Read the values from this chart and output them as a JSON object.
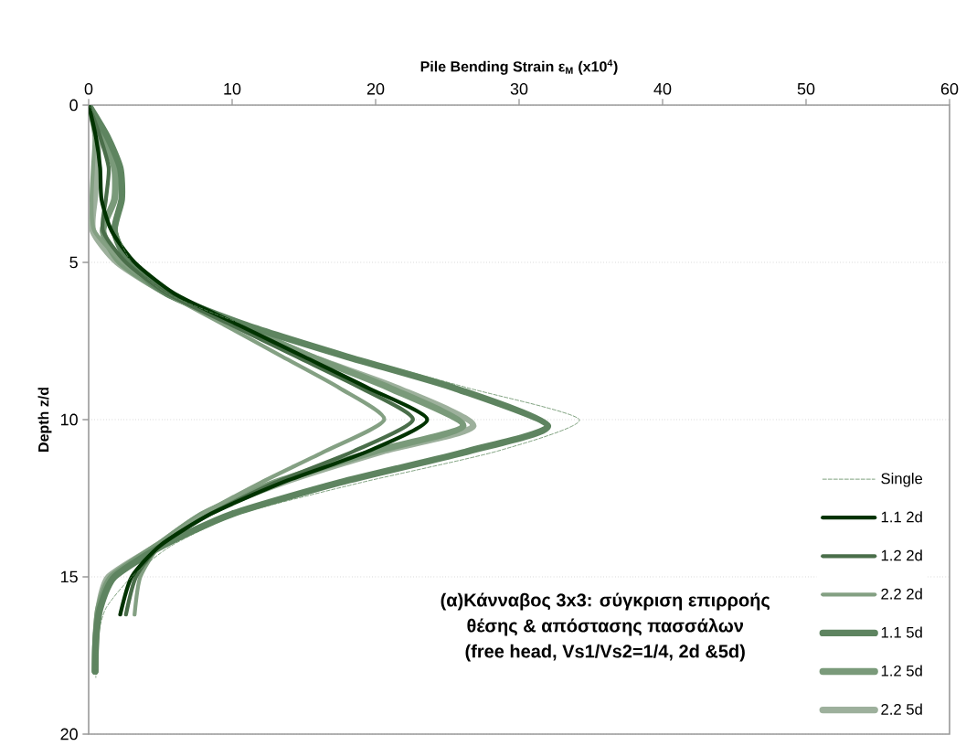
{
  "chart_data": {
    "type": "line",
    "xlabel": "Pile Bending Strain ε$_{M}$  (x10$^{4}$)",
    "ylabel": "Depth z/d",
    "xlim": [
      0,
      60
    ],
    "xticks": [
      0,
      10,
      20,
      30,
      40,
      50,
      60
    ],
    "ylim": [
      20,
      0
    ],
    "yticks": [
      0,
      5,
      10,
      15,
      20
    ],
    "grid": "y",
    "legend": "bottom right",
    "marker": "none",
    "annotations": [
      "(α)Κάνναβος 3x3: σύγκριση επιρροής",
      "θέσης & απόστασης πασσάλων",
      "(free head, Vs1/Vs2=1/4, 2d &5d)"
    ],
    "series": [
      {
        "name": "Single",
        "color": "#5f8a5f",
        "line_style": "dashed",
        "x": [
          0,
          1.4,
          2.3,
          2.4,
          2.0,
          3.0,
          5.5,
          11,
          18.5,
          26.5,
          34.2,
          28.5,
          19,
          10.5,
          5.8,
          3.0,
          1.2,
          0.6,
          0.5
        ],
        "values": [
          0,
          1,
          2,
          3,
          4,
          5,
          6,
          7,
          8,
          9,
          10,
          11,
          12,
          13,
          14,
          15,
          16,
          17,
          18.2
        ]
      },
      {
        "name": "1.1 2d",
        "color": "#003300",
        "line_style": "solid",
        "x": [
          0,
          0.5,
          0.8,
          0.9,
          1.6,
          3.2,
          6,
          10.5,
          15,
          19.5,
          23.6,
          19.5,
          13.5,
          8.5,
          5,
          3,
          2.2
        ],
        "values": [
          0,
          1,
          2,
          3,
          4,
          5,
          6,
          7,
          8,
          9,
          10,
          11,
          12,
          13,
          14,
          15,
          16.2
        ]
      },
      {
        "name": "1.2 2d",
        "color": "#4a6e4a",
        "line_style": "solid",
        "x": [
          0,
          0.8,
          1.4,
          1.2,
          1.0,
          2.6,
          5.5,
          10,
          14.5,
          19,
          22.6,
          18.5,
          13,
          8.5,
          5,
          3.3,
          2.6
        ],
        "values": [
          0,
          1,
          2,
          3,
          4,
          5,
          6,
          7,
          8,
          9,
          10,
          11,
          12,
          13,
          14,
          15,
          16.2
        ]
      },
      {
        "name": "2.2 2d",
        "color": "#84a083",
        "line_style": "solid",
        "x": [
          0,
          0.4,
          0.3,
          0.2,
          0.4,
          2.4,
          5.5,
          9.5,
          13.5,
          17.5,
          20.6,
          16.5,
          12,
          8,
          5,
          3.6,
          3.2
        ],
        "values": [
          0,
          1,
          2,
          3,
          4,
          5,
          6,
          7,
          8,
          9,
          10,
          11,
          12,
          13,
          14,
          15,
          16.2
        ]
      },
      {
        "name": "1.1 5d",
        "color": "#5e8460",
        "line_style": "solid",
        "x": [
          0,
          1.3,
          2.2,
          2.3,
          1.8,
          2.8,
          5.5,
          11,
          18,
          25.5,
          32,
          26.5,
          17.5,
          10,
          5.2,
          1.8,
          0.8,
          0.5,
          0.45
        ],
        "values": [
          0,
          1,
          2,
          3,
          4,
          5,
          6,
          7,
          8,
          9,
          10.2,
          11,
          12,
          13,
          14,
          15,
          16,
          17,
          18
        ]
      },
      {
        "name": "1.2 5d",
        "color": "#7a9a7a",
        "line_style": "solid",
        "x": [
          0,
          1.0,
          1.8,
          1.8,
          1.0,
          2.2,
          5.5,
          10.5,
          15.5,
          21,
          26.1,
          20,
          13,
          8,
          4.8,
          1.6,
          0.7,
          0.5,
          0.45
        ],
        "values": [
          0,
          1,
          2,
          3,
          4,
          5,
          6,
          7,
          8,
          9,
          10.2,
          11,
          12,
          13,
          14,
          15,
          16,
          17,
          18
        ]
      },
      {
        "name": "2.2 5d",
        "color": "#9db09c",
        "line_style": "solid",
        "x": [
          0,
          0.6,
          0.6,
          0.4,
          0.3,
          2.0,
          5.5,
          10.5,
          15.5,
          21.5,
          26.8,
          20.5,
          13.5,
          8,
          4.8,
          1.4,
          0.7,
          0.5,
          0.45
        ],
        "values": [
          0,
          1,
          2,
          3,
          4,
          5,
          6,
          7,
          8,
          9,
          10.2,
          11,
          12,
          13,
          14,
          15,
          16,
          17,
          18
        ]
      }
    ]
  }
}
